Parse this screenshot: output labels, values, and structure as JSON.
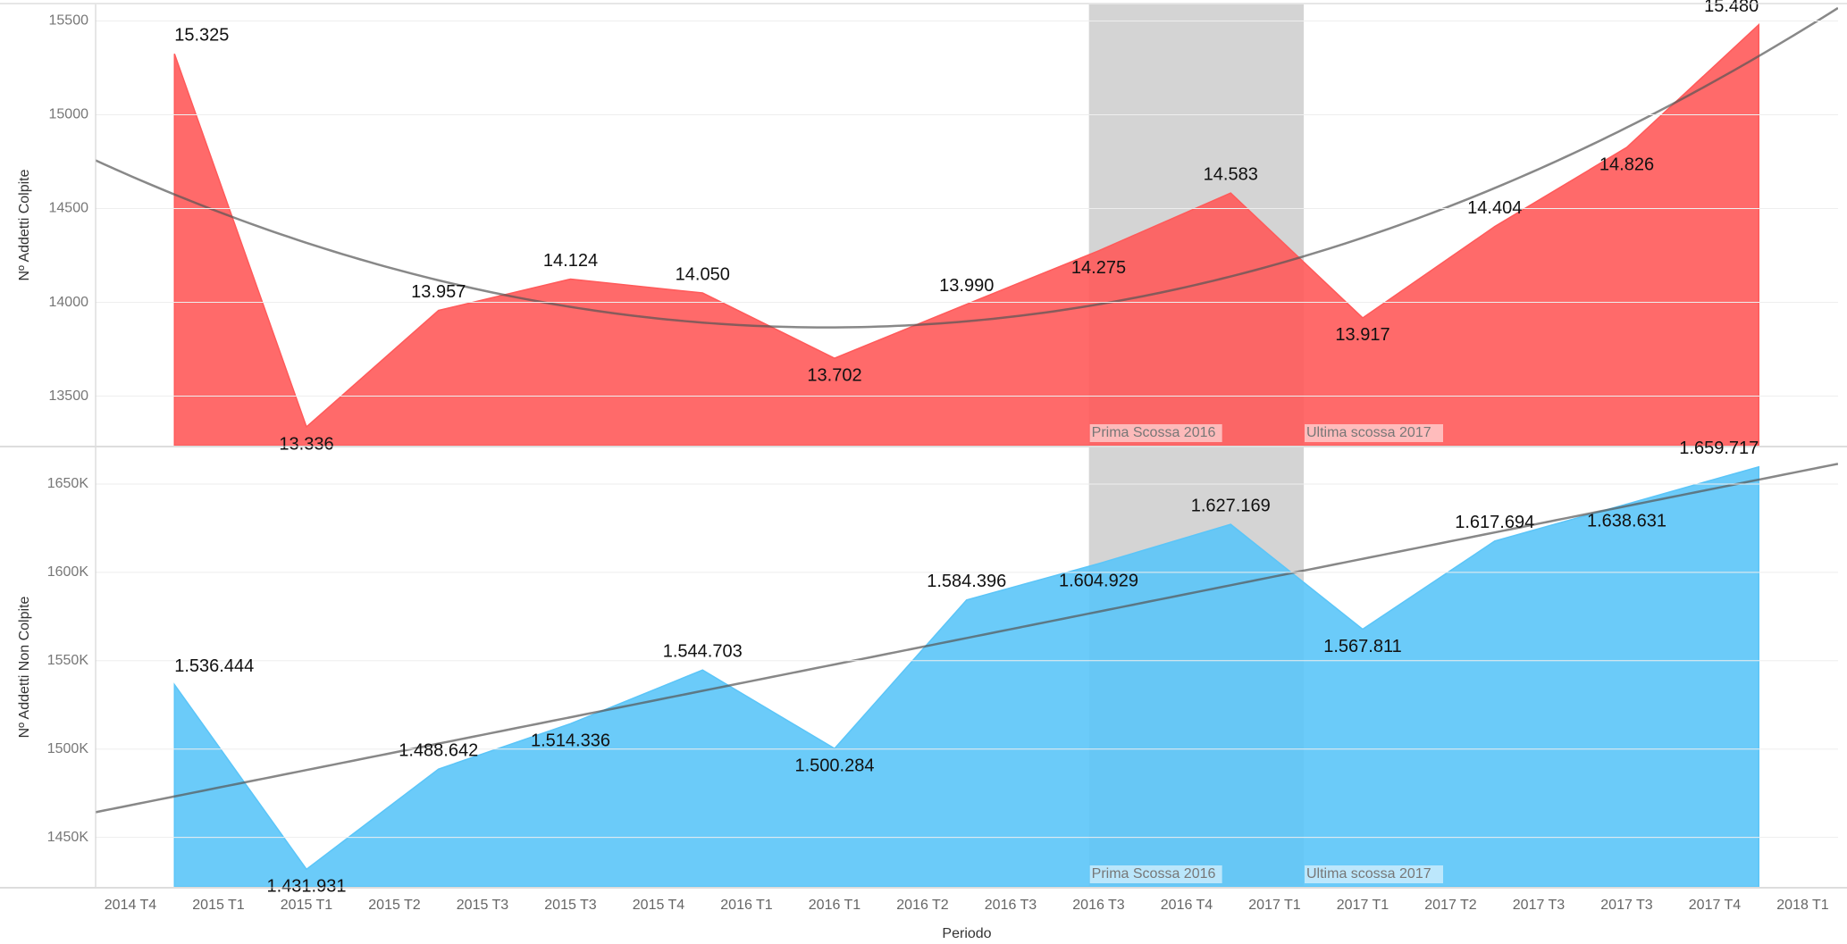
{
  "chart_data": [
    {
      "type": "area",
      "ylabel": "Nº Addetti Colpite",
      "color": "#ff5a5a",
      "trend": "polynomial",
      "annotations": [
        "Prima Scossa 2016",
        "Ultima scossa 2017"
      ],
      "values": [
        15325,
        13336,
        13957,
        14124,
        14050,
        13702,
        13990,
        14275,
        14583,
        13917,
        14404,
        14826,
        15480
      ],
      "value_labels": [
        "15.325",
        "13.336",
        "13.957",
        "14.124",
        "14.050",
        "13.702",
        "13.990",
        "14.275",
        "14.583",
        "13.917",
        "14.404",
        "14.826",
        "15.480"
      ],
      "ylim": [
        13236,
        15588
      ],
      "yticks": [
        13500,
        14000,
        14500,
        15000,
        15500
      ],
      "grid": true
    },
    {
      "type": "area",
      "ylabel": "Nº Addetti Non Colpite",
      "color": "#5bc5f8",
      "trend": "linear",
      "annotations": [
        "Prima Scossa 2016",
        "Ultima scossa 2017"
      ],
      "values": [
        1536444,
        1431931,
        1488642,
        1514336,
        1544703,
        1500284,
        1584396,
        1604929,
        1627169,
        1567811,
        1617694,
        1638631,
        1659717
      ],
      "value_labels": [
        "1.536.444",
        "1.431.931",
        "1.488.642",
        "1.514.336",
        "1.544.703",
        "1.500.284",
        "1.584.396",
        "1.604.929",
        "1.627.169",
        "1.567.811",
        "1.617.694",
        "1.638.631",
        "1.659.717"
      ],
      "ylim": [
        1422000,
        1670700
      ],
      "yticks": [
        {
          "value": 1450000,
          "label": "1450K"
        },
        {
          "value": 1500000,
          "label": "1500K"
        },
        {
          "value": 1550000,
          "label": "1550K"
        },
        {
          "value": 1600000,
          "label": "1600K"
        },
        {
          "value": 1650000,
          "label": "1650K"
        }
      ],
      "grid": true,
      "xlabel": "Periodo",
      "xticks": [
        "2014 T4",
        "2015 T1",
        "2015 T1",
        "2015 T2",
        "2015 T3",
        "2015 T3",
        "2015 T4",
        "2016 T1",
        "2016 T1",
        "2016 T2",
        "2016 T3",
        "2016 T3",
        "2016 T4",
        "2017 T1",
        "2017 T1",
        "2017 T2",
        "2017 T3",
        "2017 T3",
        "2017 T4",
        "2018 T1"
      ]
    }
  ]
}
